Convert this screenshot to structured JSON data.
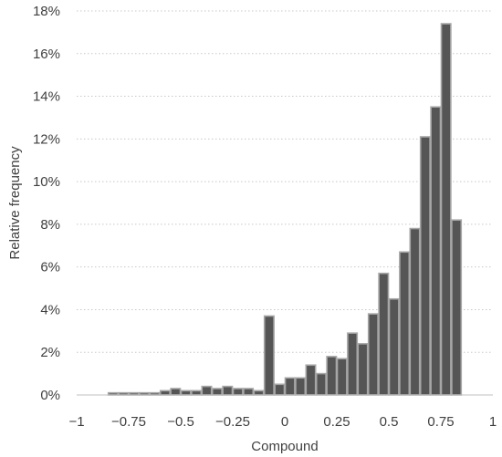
{
  "chart_data": {
    "type": "bar",
    "xlabel": "Compound",
    "ylabel": "Relative frequency",
    "xlim": [
      -1,
      1
    ],
    "ylim": [
      0,
      18
    ],
    "y_ticks": [
      0,
      2,
      4,
      6,
      8,
      10,
      12,
      14,
      16,
      18
    ],
    "y_tick_labels": [
      "0%",
      "2%",
      "4%",
      "6%",
      "8%",
      "10%",
      "12%",
      "14%",
      "16%",
      "18%"
    ],
    "x_ticks": [
      -1,
      -0.75,
      -0.5,
      -0.25,
      0,
      0.25,
      0.5,
      0.75,
      1
    ],
    "x_tick_labels": [
      "−1",
      "−0.75",
      "−0.5",
      "−0.25",
      "0",
      "0.25",
      "0.5",
      "0.75",
      "1"
    ],
    "grid": "horizontal dotted",
    "bin_width": 0.05,
    "bin_starts": [
      -1,
      -0.95,
      -0.9,
      -0.85,
      -0.8,
      -0.75,
      -0.7,
      -0.65,
      -0.6,
      -0.55,
      -0.5,
      -0.45,
      -0.4,
      -0.35,
      -0.3,
      -0.25,
      -0.2,
      -0.15,
      -0.1,
      -0.05,
      0,
      0.05,
      0.1,
      0.15,
      0.2,
      0.25,
      0.3,
      0.35,
      0.4,
      0.45,
      0.5,
      0.55,
      0.6,
      0.65,
      0.7,
      0.75,
      0.8,
      0.85,
      0.9,
      0.95
    ],
    "values": [
      0.0,
      0.0,
      0.0,
      0.1,
      0.1,
      0.1,
      0.1,
      0.1,
      0.2,
      0.3,
      0.2,
      0.2,
      0.4,
      0.3,
      0.4,
      0.3,
      0.3,
      0.2,
      3.7,
      0.5,
      0.8,
      0.8,
      1.4,
      1.0,
      1.8,
      1.7,
      2.9,
      2.4,
      3.8,
      5.7,
      4.5,
      6.7,
      7.8,
      12.1,
      13.5,
      17.4,
      8.2,
      0,
      0,
      0
    ],
    "bar_fill": "#555555",
    "bar_stroke": "#a6a6a6"
  }
}
